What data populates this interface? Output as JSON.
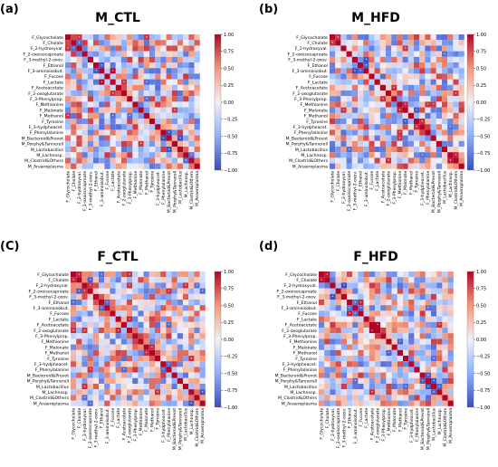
{
  "panels": [
    {
      "letter": "(a)",
      "title": "M_CTL"
    },
    {
      "letter": "(b)",
      "title": "M_HFD"
    },
    {
      "letter": "(C)",
      "title": "F_CTL"
    },
    {
      "letter": "(d)",
      "title": "F_HFD"
    }
  ],
  "colormap": {
    "low": "#3b4cc0",
    "mid": "#f2f0f7",
    "high": "#b40426"
  },
  "chart_data": [
    {
      "type": "heatmap",
      "title": "M_CTL",
      "labels": [
        "F_Glycocholate",
        "F_Cholate",
        "F_2-hydroxyval.",
        "F_2-oxoisocaproate",
        "F_3-methyl-2-oxov.",
        "F_Ethanol",
        "F_3-aminoisobut.",
        "F_Fucose",
        "F_Lactate",
        "F_Acetoacetate",
        "F_2-oxoglutarate",
        "F_3-Phenylprop.",
        "F_Methionine",
        "F_Malonate",
        "F_Methanol",
        "F_Tyrosine",
        "F_3-hydpheacet.",
        "F_Phenylalanine",
        "M_Bacteroid&Prevot",
        "M_Porphy&Tannerell",
        "M_Lactobacillus",
        "M_Lachnosp.",
        "M_Clostrid&Others",
        "M_Anaeroplasma"
      ],
      "colorbar_ticks": [
        "1.00",
        "0.75",
        "0.50",
        "0.25",
        "0.00",
        "−0.25",
        "−0.50",
        "−0.75",
        "−1.00"
      ],
      "clim": [
        -1,
        1
      ]
    },
    {
      "type": "heatmap",
      "title": "M_HFD",
      "labels": [
        "F_Glycocholate",
        "F_Cholate",
        "F_2-hydroxyval.",
        "F_2-oxoisocaproate",
        "F_3-methyl-2-oxov.",
        "F_Ethanol",
        "F_3-aminoisobut.",
        "F_Fucose",
        "F_Lactate",
        "F_Acetoacetate",
        "F_2-oxoglutarate",
        "F_3-Phenylprop.",
        "F_Methionine",
        "F_Malonate",
        "F_Methanol",
        "F_Tyrosine",
        "F_3-hydpheacet.",
        "F_Phenylalanine",
        "M_Bacteroid&Prevot",
        "M_Porphy&Tannerell",
        "M_Lactobacillus",
        "M_Lachnosp.",
        "M_Clostrid&Others",
        "M_Anaeroplasma"
      ],
      "colorbar_ticks": [
        "1.00",
        "0.75",
        "0.50",
        "0.25",
        "0.00",
        "−0.25",
        "−0.50",
        "−0.75",
        "−1.00"
      ],
      "clim": [
        -1,
        1
      ]
    },
    {
      "type": "heatmap",
      "title": "F_CTL",
      "labels": [
        "F_Glycocholate",
        "F_Cholate",
        "F_2-hydroxyval.",
        "F_2-oxoisocaproate",
        "F_3-methyl-2-oxov.",
        "F_Ethanol",
        "F_3-aminoisobut.",
        "F_Fucose",
        "F_Lactate",
        "F_Acetoacetate",
        "F_2-oxoglutarate",
        "F_3-Phenylprop.",
        "F_Methionine",
        "F_Malonate",
        "F_Methanol",
        "F_Tyrosine",
        "F_3-hydpheacet.",
        "F_Phenylalanine",
        "M_Bacteroid&Prevot",
        "M_Porphy&Tannerell",
        "M_Lactobacillus",
        "M_Lachnosp.",
        "M_Clostrid&Others",
        "M_Anaeroplasma"
      ],
      "colorbar_ticks": [
        "1.00",
        "0.75",
        "0.50",
        "0.25",
        "0.00",
        "−0.25",
        "−0.50",
        "−0.75",
        "−1.00"
      ],
      "clim": [
        -1,
        1
      ]
    },
    {
      "type": "heatmap",
      "title": "F_HFD",
      "labels": [
        "F_Glycocholate",
        "F_Cholate",
        "F_2-hydroxyval.",
        "F_2-oxoisocaproate",
        "F_3-methyl-2-oxov.",
        "F_Ethanol",
        "F_3-aminoisobut.",
        "F_Fucose",
        "F_Lactate",
        "F_Acetoacetate",
        "F_2-oxoglutarate",
        "F_3-Phenylprop.",
        "F_Methionine",
        "F_Malonate",
        "F_Methanol",
        "F_Tyrosine",
        "F_3-hydpheacet.",
        "F_Phenylalanine",
        "M_Bacteroid&Prevot",
        "M_Porphy&Tannerell",
        "M_Lactobacillus",
        "M_Lachnosp.",
        "M_Clostrid&Others",
        "M_Anaeroplasma"
      ],
      "colorbar_ticks": [
        "1.00",
        "0.75",
        "0.50",
        "0.25",
        "0.00",
        "−0.25",
        "−0.50",
        "−0.75",
        "−1.00"
      ],
      "clim": [
        -1,
        1
      ]
    }
  ]
}
